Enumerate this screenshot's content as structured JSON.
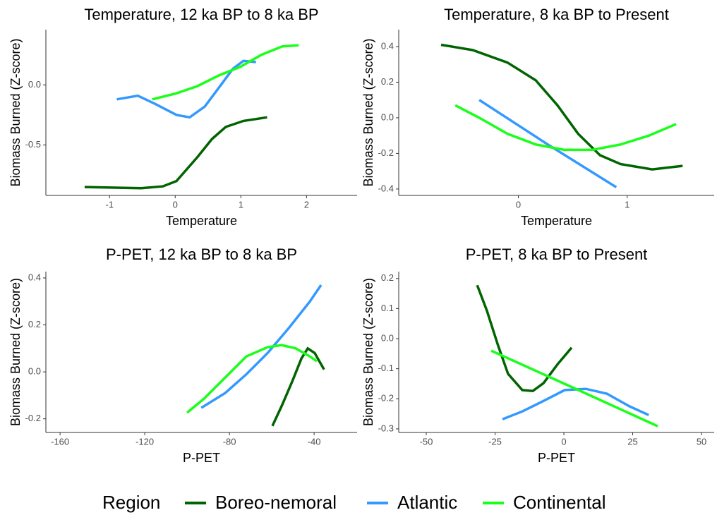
{
  "chart_data": [
    {
      "type": "line",
      "title": "Temperature, 12 ka BP to 8 ka BP",
      "xlabel": "Temperature",
      "ylabel": "Biomass Burned (Z-score)",
      "xlim": [
        -1.97,
        2.77
      ],
      "ylim": [
        -0.92,
        0.46
      ],
      "xticks": [
        -1,
        0,
        1,
        2
      ],
      "yticks": [
        -0.5,
        {
          "value": 0,
          "label": "0.0"
        }
      ],
      "series": [
        {
          "name": "Boreo-nemoral",
          "color": "#006400",
          "x": [
            -1.38,
            -0.52,
            -0.19,
            0.02,
            0.34,
            0.56,
            0.77,
            1.04,
            1.4
          ],
          "values": [
            -0.85,
            -0.86,
            -0.845,
            -0.8,
            -0.6,
            -0.45,
            -0.35,
            -0.3,
            -0.27
          ]
        },
        {
          "name": "Atlantic",
          "color": "#3399ff",
          "x": [
            -0.89,
            -0.57,
            -0.3,
            0.02,
            0.22,
            0.45,
            0.67,
            0.88,
            1.04,
            1.23
          ],
          "values": [
            -0.12,
            -0.09,
            -0.16,
            -0.25,
            -0.27,
            -0.18,
            -0.02,
            0.135,
            0.2,
            0.19
          ]
        },
        {
          "name": "Continental",
          "color": "#1aff1a",
          "x": [
            -0.35,
            0.02,
            0.34,
            0.67,
            0.99,
            1.31,
            1.63,
            1.88
          ],
          "values": [
            -0.12,
            -0.07,
            -0.01,
            0.08,
            0.15,
            0.25,
            0.32,
            0.33
          ]
        }
      ]
    },
    {
      "type": "line",
      "title": "Temperature, 8 ka BP to Present",
      "xlabel": "Temperature",
      "ylabel": "Biomass Burned (Z-score)",
      "xlim": [
        -1.1,
        1.8
      ],
      "ylim": [
        -0.436,
        0.495
      ],
      "xticks": [
        0,
        1
      ],
      "yticks": [
        0.4,
        0.2,
        {
          "value": 0,
          "label": "0.0"
        },
        -0.2,
        -0.4
      ],
      "series": [
        {
          "name": "Boreo-nemoral",
          "color": "#006400",
          "x": [
            -0.71,
            -0.42,
            -0.1,
            0.16,
            0.36,
            0.55,
            0.75,
            0.94,
            1.23,
            1.51
          ],
          "values": [
            0.41,
            0.38,
            0.31,
            0.21,
            0.07,
            -0.09,
            -0.21,
            -0.26,
            -0.29,
            -0.27
          ]
        },
        {
          "name": "Atlantic",
          "color": "#3399ff",
          "x": [
            -0.36,
            0.27,
            0.9
          ],
          "values": [
            0.1,
            -0.15,
            -0.39
          ]
        },
        {
          "name": "Continental",
          "color": "#1aff1a",
          "x": [
            -0.58,
            -0.36,
            -0.1,
            0.16,
            0.42,
            0.68,
            0.94,
            1.2,
            1.45
          ],
          "values": [
            0.07,
            0,
            -0.09,
            -0.15,
            -0.18,
            -0.18,
            -0.15,
            -0.1,
            -0.035
          ]
        }
      ]
    },
    {
      "type": "line",
      "title": "P-PET, 12 ka BP to 8 ka BP",
      "xlabel": "P-PET",
      "ylabel": "Biomass Burned (Z-score)",
      "xlim": [
        -166.7,
        -19.7
      ],
      "ylim": [
        -0.258,
        0.427
      ],
      "xticks": [
        -160,
        -120,
        -80,
        -40
      ],
      "yticks": [
        0.4,
        0.2,
        {
          "value": 0,
          "label": "0.0"
        },
        -0.2
      ],
      "series": [
        {
          "name": "Boreo-nemoral",
          "color": "#006400",
          "x": [
            -59.7,
            -55.3,
            -50.3,
            -46,
            -43,
            -39.7,
            -35.3
          ],
          "values": [
            -0.23,
            -0.145,
            -0.04,
            0.057,
            0.1,
            0.08,
            0.01
          ]
        },
        {
          "name": "Atlantic",
          "color": "#3399ff",
          "x": [
            -93.3,
            -82,
            -72,
            -62,
            -52,
            -42,
            -36.7
          ],
          "values": [
            -0.153,
            -0.09,
            -0.01,
            0.08,
            0.186,
            0.3,
            0.37
          ]
        },
        {
          "name": "Continental",
          "color": "#1aff1a",
          "x": [
            -100,
            -92,
            -82,
            -72,
            -62,
            -55.3,
            -48.7,
            -42,
            -38.7
          ],
          "values": [
            -0.174,
            -0.114,
            -0.024,
            0.066,
            0.105,
            0.114,
            0.1,
            0.066,
            0.045
          ]
        }
      ]
    },
    {
      "type": "line",
      "title": "P-PET, 8 ka BP to Present",
      "xlabel": "P-PET",
      "ylabel": "Biomass Burned (Z-score)",
      "xlim": [
        -60,
        54.6
      ],
      "ylim": [
        -0.312,
        0.223
      ],
      "xticks": [
        -50,
        -25,
        0,
        25,
        50
      ],
      "yticks": [
        0.2,
        0.1,
        {
          "value": 0,
          "label": "0.0"
        },
        -0.1,
        -0.2,
        -0.3
      ],
      "series": [
        {
          "name": "Boreo-nemoral",
          "color": "#006400",
          "x": [
            -31.5,
            -28,
            -24,
            -20.3,
            -15.1,
            -11.3,
            -7.4,
            -2.3,
            2.8
          ],
          "values": [
            0.178,
            0.094,
            -0.02,
            -0.117,
            -0.171,
            -0.174,
            -0.148,
            -0.085,
            -0.03
          ]
        },
        {
          "name": "Atlantic",
          "color": "#3399ff",
          "x": [
            -22.3,
            -15.1,
            -7.4,
            0.3,
            8,
            15.6,
            23.8,
            30.8
          ],
          "values": [
            -0.268,
            -0.242,
            -0.207,
            -0.171,
            -0.167,
            -0.183,
            -0.225,
            -0.254
          ]
        },
        {
          "name": "Continental",
          "color": "#1aff1a",
          "x": [
            -26.4,
            3.85,
            34.1
          ],
          "values": [
            -0.04,
            -0.165,
            -0.291
          ]
        }
      ]
    }
  ],
  "legend": {
    "title": "Region"
  }
}
